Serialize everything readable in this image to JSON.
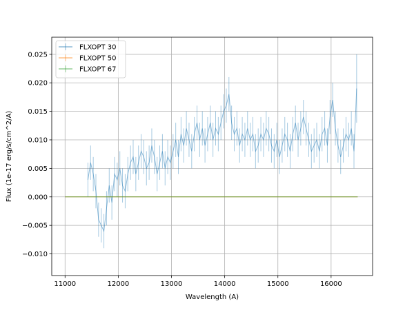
{
  "chart_data": {
    "type": "line",
    "xlabel": "Wavelength (A)",
    "ylabel": "Flux (1e-17 erg/s/cm^2/A)",
    "xlim": [
      10750,
      16780
    ],
    "ylim": [
      -0.0138,
      0.028
    ],
    "x_ticks": [
      11000,
      12000,
      13000,
      14000,
      15000,
      16000
    ],
    "y_ticks": [
      -0.01,
      -0.005,
      0.0,
      0.005,
      0.01,
      0.015,
      0.02,
      0.025
    ],
    "x_tick_labels": [
      "11000",
      "12000",
      "13000",
      "14000",
      "15000",
      "16000"
    ],
    "y_tick_labels": [
      "−0.010",
      "−0.005",
      "0.000",
      "0.005",
      "0.010",
      "0.015",
      "0.020",
      "0.025"
    ],
    "grid": true,
    "legend_position": "top-left",
    "series": [
      {
        "name": "FLXOPT 30",
        "color": "#1f77b4",
        "error_bars": true,
        "x": [
          11430,
          11480,
          11530,
          11580,
          11630,
          11680,
          11730,
          11780,
          11830,
          11880,
          11930,
          11980,
          12030,
          12080,
          12130,
          12180,
          12230,
          12280,
          12330,
          12380,
          12430,
          12480,
          12530,
          12580,
          12630,
          12680,
          12730,
          12780,
          12830,
          12880,
          12930,
          12980,
          13030,
          13080,
          13130,
          13180,
          13230,
          13280,
          13330,
          13380,
          13430,
          13480,
          13530,
          13580,
          13630,
          13680,
          13730,
          13780,
          13830,
          13880,
          13930,
          13980,
          14030,
          14080,
          14130,
          14180,
          14230,
          14280,
          14330,
          14380,
          14430,
          14480,
          14530,
          14580,
          14630,
          14680,
          14730,
          14780,
          14830,
          14880,
          14930,
          14980,
          15030,
          15080,
          15130,
          15180,
          15230,
          15280,
          15330,
          15380,
          15430,
          15480,
          15530,
          15580,
          15630,
          15680,
          15730,
          15780,
          15830,
          15880,
          15930,
          15980,
          16030,
          16080,
          16130,
          16180,
          16230,
          16280,
          16330,
          16380,
          16430,
          16480
        ],
        "y": [
          0.003,
          0.006,
          0.004,
          0.001,
          -0.004,
          -0.005,
          -0.006,
          -0.002,
          0.002,
          -0.001,
          0.004,
          0.003,
          0.005,
          0.002,
          0.001,
          0.004,
          0.006,
          0.007,
          0.004,
          0.006,
          0.008,
          0.007,
          0.005,
          0.006,
          0.009,
          0.007,
          0.004,
          0.006,
          0.008,
          0.005,
          0.007,
          0.006,
          0.008,
          0.01,
          0.007,
          0.011,
          0.009,
          0.012,
          0.01,
          0.008,
          0.011,
          0.013,
          0.01,
          0.012,
          0.009,
          0.011,
          0.013,
          0.01,
          0.012,
          0.011,
          0.013,
          0.015,
          0.016,
          0.018,
          0.013,
          0.011,
          0.012,
          0.009,
          0.011,
          0.01,
          0.012,
          0.01,
          0.011,
          0.008,
          0.009,
          0.011,
          0.01,
          0.012,
          0.011,
          0.009,
          0.008,
          0.01,
          0.007,
          0.009,
          0.011,
          0.01,
          0.008,
          0.011,
          0.013,
          0.01,
          0.012,
          0.014,
          0.012,
          0.01,
          0.008,
          0.009,
          0.01,
          0.008,
          0.011,
          0.012,
          0.009,
          0.014,
          0.017,
          0.012,
          0.009,
          0.007,
          0.009,
          0.011,
          0.01,
          0.012,
          0.008,
          0.019
        ],
        "yerr": [
          0.003,
          0.003,
          0.003,
          0.003,
          0.003,
          0.003,
          0.003,
          0.003,
          0.003,
          0.003,
          0.003,
          0.003,
          0.003,
          0.003,
          0.003,
          0.003,
          0.003,
          0.003,
          0.003,
          0.003,
          0.003,
          0.003,
          0.003,
          0.003,
          0.003,
          0.003,
          0.003,
          0.003,
          0.003,
          0.003,
          0.003,
          0.003,
          0.003,
          0.003,
          0.003,
          0.003,
          0.003,
          0.003,
          0.003,
          0.003,
          0.003,
          0.003,
          0.003,
          0.003,
          0.003,
          0.003,
          0.003,
          0.003,
          0.003,
          0.003,
          0.003,
          0.003,
          0.003,
          0.003,
          0.003,
          0.003,
          0.003,
          0.003,
          0.003,
          0.003,
          0.003,
          0.003,
          0.003,
          0.003,
          0.003,
          0.003,
          0.003,
          0.003,
          0.003,
          0.003,
          0.003,
          0.003,
          0.003,
          0.003,
          0.003,
          0.003,
          0.003,
          0.003,
          0.003,
          0.003,
          0.003,
          0.003,
          0.003,
          0.003,
          0.003,
          0.003,
          0.003,
          0.003,
          0.003,
          0.003,
          0.003,
          0.003,
          0.003,
          0.003,
          0.003,
          0.003,
          0.003,
          0.003,
          0.003,
          0.003,
          0.003,
          0.006
        ]
      },
      {
        "name": "FLXOPT 50",
        "color": "#ff7f0e",
        "error_bars": true,
        "x": [
          11000,
          16500
        ],
        "y": [
          0.0,
          0.0
        ],
        "yerr": [
          0.0,
          0.0
        ]
      },
      {
        "name": "FLXOPT 67",
        "color": "#2ca02c",
        "error_bars": true,
        "x": [
          11000,
          16500
        ],
        "y": [
          0.0,
          0.0
        ],
        "yerr": [
          0.0,
          0.0
        ]
      }
    ]
  }
}
